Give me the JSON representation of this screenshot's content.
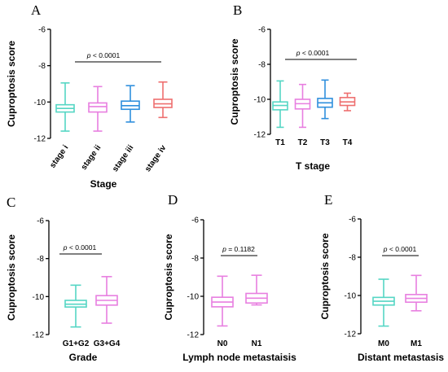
{
  "chart_data": [
    {
      "type": "box",
      "panel": "A",
      "ylabel": "Cuproptosis score",
      "xlabel": "Stage",
      "ylim": [
        -12,
        -6
      ],
      "yticks": [
        "-6",
        "-8",
        "-10",
        "-12"
      ],
      "rotate_categories": true,
      "annotation": {
        "p_symbol": "p",
        "text": " < 0.0001"
      },
      "categories": [
        "stage i",
        "stage ii",
        "stage iii",
        "stage iv"
      ],
      "boxes": [
        {
          "min": -11.6,
          "q1": -10.55,
          "median": -10.35,
          "q3": -10.15,
          "max": -8.95,
          "color": "#55d6c4"
        },
        {
          "min": -11.6,
          "q1": -10.55,
          "median": -10.25,
          "q3": -10.05,
          "max": -9.15,
          "color": "#e87fe0"
        },
        {
          "min": -11.1,
          "q1": -10.4,
          "median": -10.2,
          "q3": -9.95,
          "max": -9.1,
          "color": "#2f8fdd"
        },
        {
          "min": -10.85,
          "q1": -10.3,
          "median": -10.1,
          "q3": -9.85,
          "max": -8.9,
          "color": "#ee6f6f"
        }
      ]
    },
    {
      "type": "box",
      "panel": "B",
      "ylabel": "Cuproptosis score",
      "xlabel": "T stage",
      "ylim": [
        -12,
        -6
      ],
      "yticks": [
        "-6",
        "-8",
        "-10",
        "-12"
      ],
      "rotate_categories": false,
      "annotation": {
        "p_symbol": "p",
        "text": " < 0.0001"
      },
      "categories": [
        "T1",
        "T2",
        "T3",
        "T4"
      ],
      "boxes": [
        {
          "min": -11.6,
          "q1": -10.6,
          "median": -10.35,
          "q3": -10.15,
          "max": -8.95,
          "color": "#55d6c4"
        },
        {
          "min": -11.6,
          "q1": -10.55,
          "median": -10.25,
          "q3": -10.0,
          "max": -9.15,
          "color": "#e87fe0"
        },
        {
          "min": -11.1,
          "q1": -10.45,
          "median": -10.2,
          "q3": -9.95,
          "max": -8.9,
          "color": "#2f8fdd"
        },
        {
          "min": -10.65,
          "q1": -10.35,
          "median": -10.15,
          "q3": -9.9,
          "max": -9.65,
          "color": "#ee6f6f"
        }
      ]
    },
    {
      "type": "box",
      "panel": "C",
      "ylabel": "Cuproptosis score",
      "xlabel": "Grade",
      "ylim": [
        -12,
        -6
      ],
      "yticks": [
        "-6",
        "-8",
        "-10",
        "-12"
      ],
      "rotate_categories": false,
      "annotation": {
        "p_symbol": "p",
        "text": " < 0.0001"
      },
      "categories": [
        "G1+G2",
        "G3+G4"
      ],
      "boxes": [
        {
          "min": -11.6,
          "q1": -10.55,
          "median": -10.4,
          "q3": -10.2,
          "max": -9.4,
          "color": "#55d6c4"
        },
        {
          "min": -11.4,
          "q1": -10.45,
          "median": -10.2,
          "q3": -9.95,
          "max": -8.95,
          "color": "#e87fe0"
        }
      ]
    },
    {
      "type": "box",
      "panel": "D",
      "ylabel": "Cuproptosis score",
      "xlabel": "Lymph node metastaisis",
      "ylim": [
        -12,
        -6
      ],
      "yticks": [
        "-6",
        "-8",
        "-10",
        "-12"
      ],
      "rotate_categories": false,
      "annotation": {
        "p_symbol": "p",
        "text": " = 0.1182"
      },
      "categories": [
        "N0",
        "N1"
      ],
      "boxes": [
        {
          "min": -11.55,
          "q1": -10.55,
          "median": -10.3,
          "q3": -10.05,
          "max": -8.95,
          "color": "#e87fe0"
        },
        {
          "min": -10.45,
          "q1": -10.35,
          "median": -10.1,
          "q3": -9.85,
          "max": -8.9,
          "color": "#e87fe0"
        }
      ]
    },
    {
      "type": "box",
      "panel": "E",
      "ylabel": "Cuproptosis score",
      "xlabel": "Distant metastasis",
      "ylim": [
        -12,
        -6
      ],
      "yticks": [
        "-6",
        "-8",
        "-10",
        "-12"
      ],
      "rotate_categories": false,
      "annotation": {
        "p_symbol": "p",
        "text": " < 0.0001"
      },
      "categories": [
        "M0",
        "M1"
      ],
      "boxes": [
        {
          "min": -11.6,
          "q1": -10.5,
          "median": -10.3,
          "q3": -10.1,
          "max": -9.15,
          "color": "#55d6c4"
        },
        {
          "min": -10.8,
          "q1": -10.35,
          "median": -10.15,
          "q3": -9.95,
          "max": -8.95,
          "color": "#e87fe0"
        }
      ]
    }
  ]
}
